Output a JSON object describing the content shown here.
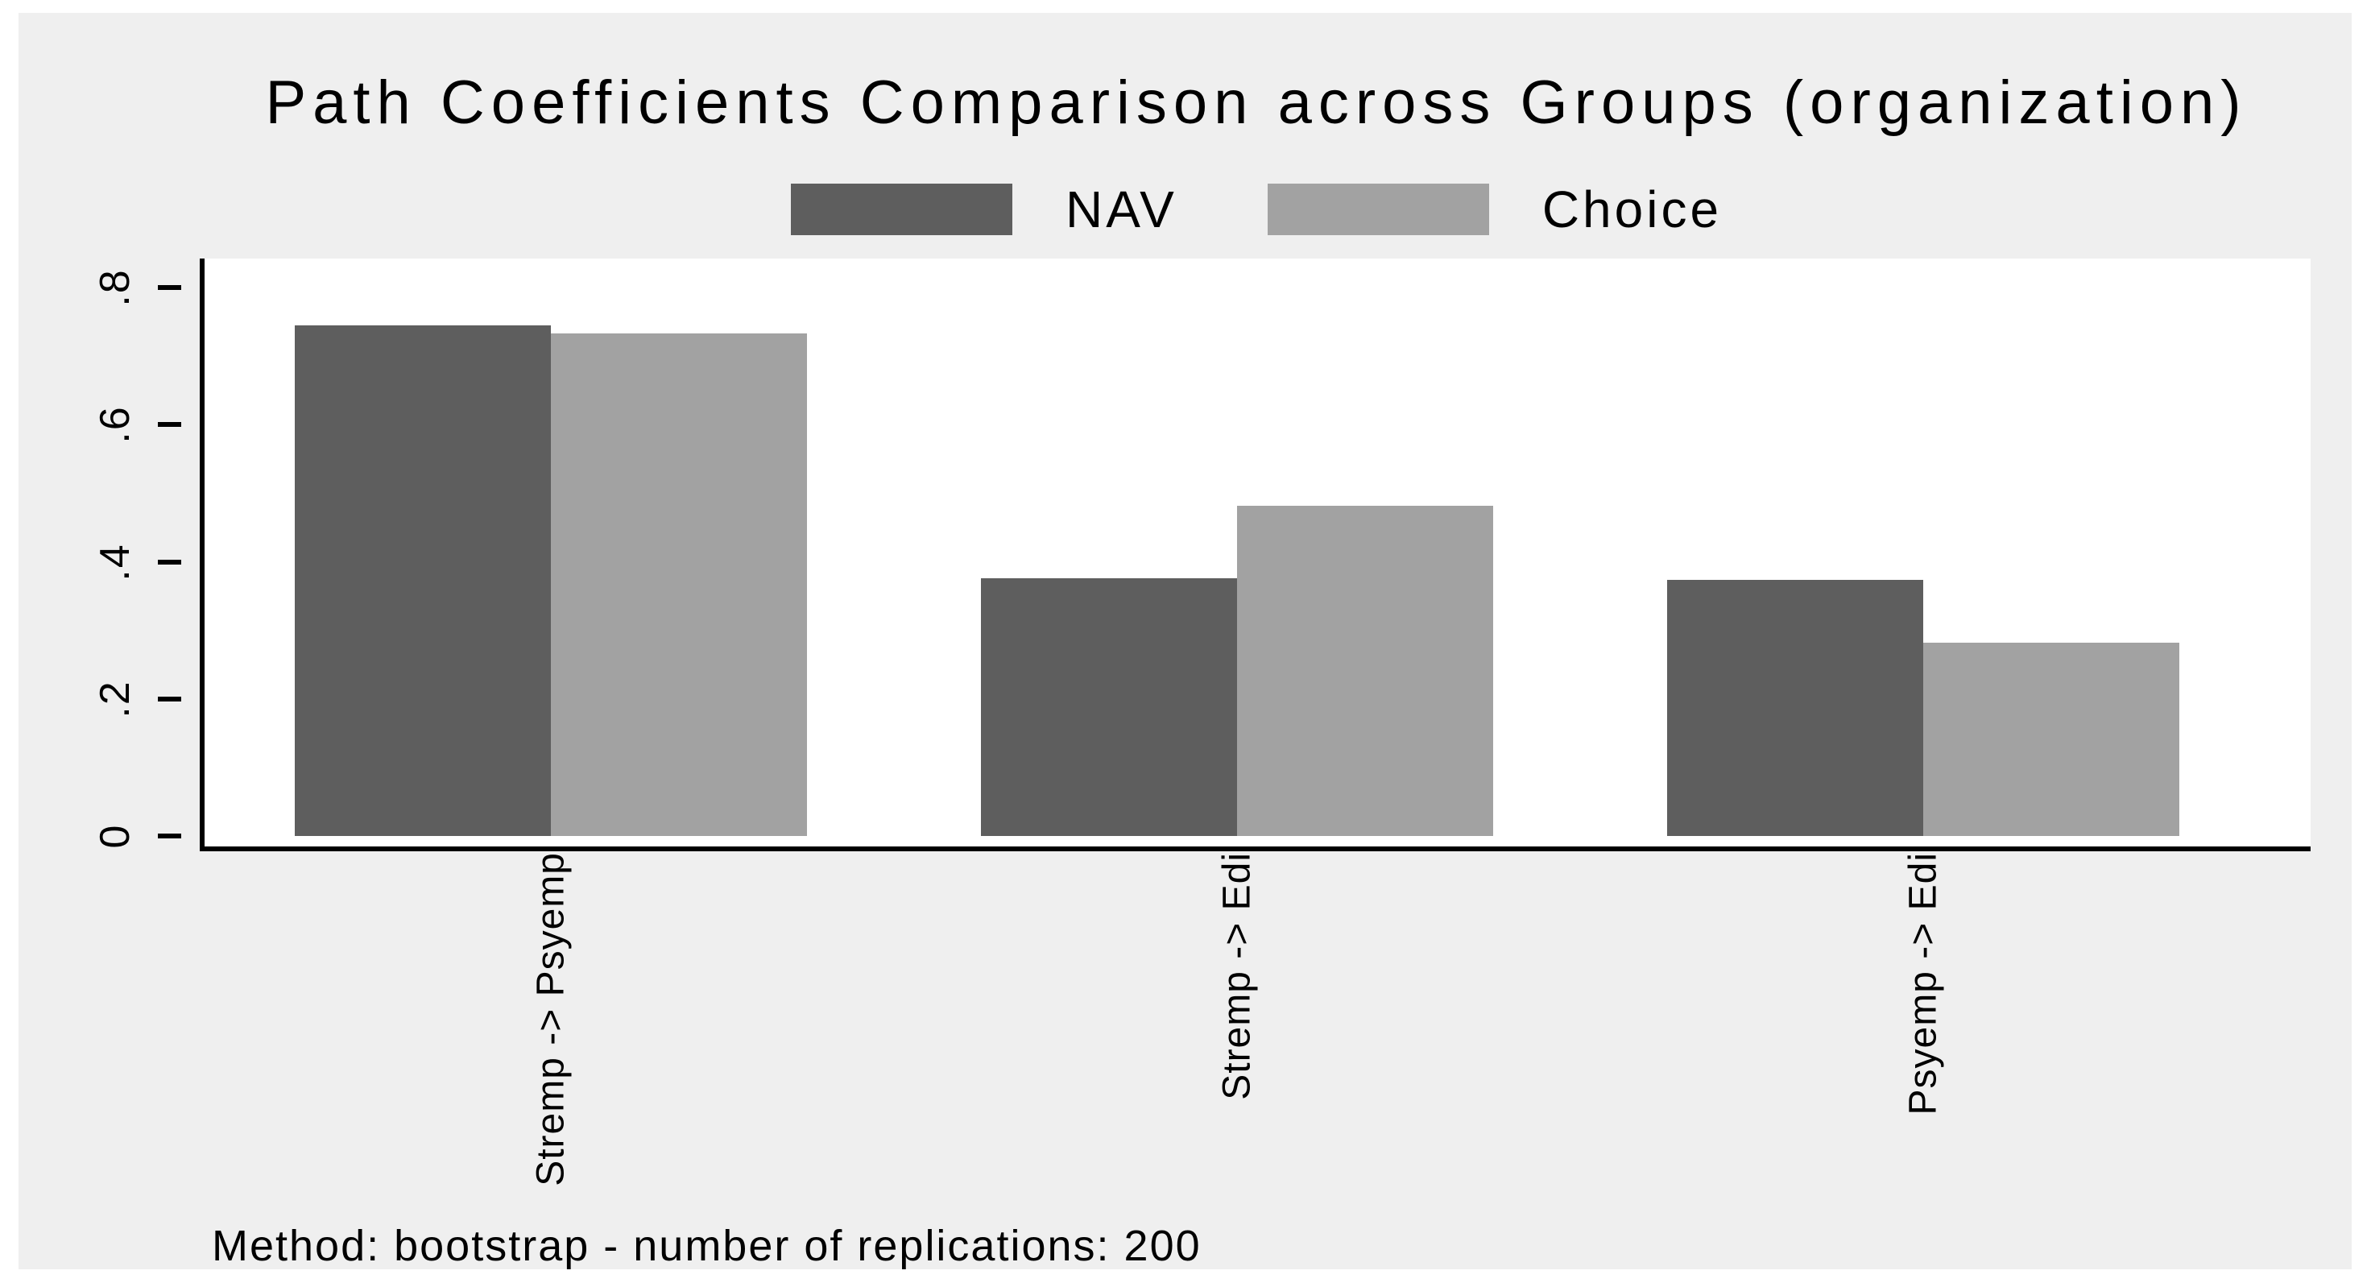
{
  "title": "Path Coefficients Comparison across Groups (organization)",
  "note": "Method: bootstrap - number of replications: 200",
  "legend": {
    "items": [
      {
        "label": "NAV"
      },
      {
        "label": "Choice"
      }
    ]
  },
  "colors": {
    "canvas_bg": "#efefef",
    "plot_bg": "#ffffff",
    "axis": "#000000",
    "nav": "#5e5e5e",
    "choice": "#a2a2a2"
  },
  "chart_data": {
    "type": "bar",
    "title": "Path Coefficients Comparison across Groups (organization)",
    "categories": [
      "Stremp -> Psyemp",
      "Stremp -> Edi",
      "Psyemp -> Edi"
    ],
    "series": [
      {
        "name": "NAV",
        "color": "#5e5e5e",
        "values": [
          0.745,
          0.376,
          0.373
        ]
      },
      {
        "name": "Choice",
        "color": "#a2a2a2",
        "values": [
          0.733,
          0.482,
          0.282
        ]
      }
    ],
    "xlabel": "",
    "ylabel": "",
    "yticks": {
      "values": [
        0,
        0.2,
        0.4,
        0.6,
        0.8
      ],
      "labels": [
        "0",
        ".2",
        ".4",
        ".6",
        ".8"
      ]
    },
    "ylim": [
      0,
      0.86
    ],
    "grid": false,
    "legend_position": "top-center",
    "note": "Method: bootstrap - number of replications: 200"
  }
}
